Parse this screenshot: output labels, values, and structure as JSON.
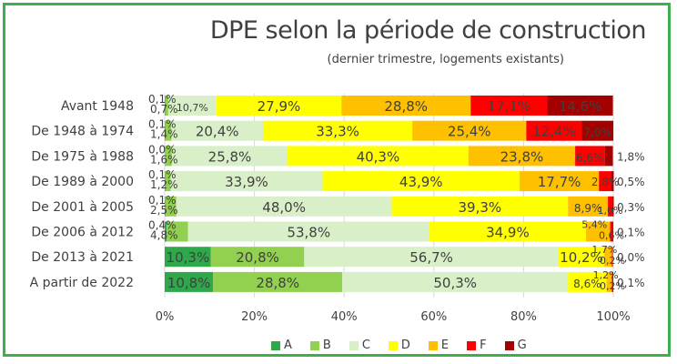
{
  "chart_data": {
    "type": "bar",
    "orientation": "horizontal",
    "stacked": "percent",
    "title": "DPE selon la période de construction",
    "subtitle": "(dernier trimestre, logements existants)",
    "xlabel": "",
    "ylabel": "",
    "xlim": [
      0,
      100
    ],
    "x_ticks": [
      "0%",
      "20%",
      "40%",
      "60%",
      "80%",
      "100%"
    ],
    "grid": true,
    "legend_position": "bottom",
    "categories": [
      "Avant 1948",
      "De 1948 à 1974",
      "De 1975 à 1988",
      "De 1989 à 2000",
      "De 2001 à 2005",
      "De 2006 à 2012",
      "De 2013 à 2021",
      "A partir de 2022"
    ],
    "series": [
      {
        "name": "A",
        "color": "#2ea84a",
        "values": [
          0.1,
          0.1,
          0.0,
          0.1,
          0.1,
          0.4,
          10.3,
          10.8
        ],
        "labels": [
          "0,1%",
          "0,1%",
          "0,0%",
          "0,1%",
          "0,1%",
          "0,4%",
          "10,3%",
          "10,8%"
        ]
      },
      {
        "name": "B",
        "color": "#92d050",
        "values": [
          0.7,
          1.4,
          1.6,
          1.2,
          2.5,
          4.8,
          20.8,
          28.8
        ],
        "labels": [
          "0,7%",
          "1,4%",
          "1,6%",
          "1,2%",
          "2,5%",
          "4,8%",
          "20,8%",
          "28,8%"
        ]
      },
      {
        "name": "C",
        "color": "#d9efc8",
        "values": [
          10.7,
          20.4,
          25.8,
          33.9,
          48.0,
          53.8,
          56.7,
          50.3
        ],
        "labels": [
          "10,7%",
          "20,4%",
          "25,8%",
          "33,9%",
          "48,0%",
          "53,8%",
          "56,7%",
          "50,3%"
        ]
      },
      {
        "name": "D",
        "color": "#ffff00",
        "values": [
          27.9,
          33.3,
          40.3,
          43.9,
          39.3,
          34.9,
          10.2,
          8.6
        ],
        "labels": [
          "27,9%",
          "33,3%",
          "40,3%",
          "43,9%",
          "39,3%",
          "34,9%",
          "10,2%",
          "8,6%"
        ]
      },
      {
        "name": "E",
        "color": "#ffc000",
        "values": [
          28.8,
          25.4,
          23.8,
          17.7,
          8.9,
          5.4,
          1.7,
          1.2
        ],
        "labels": [
          "28,8%",
          "25,4%",
          "23,8%",
          "17,7%",
          "8,9%",
          "5,4%",
          "1,7%",
          "1,2%"
        ]
      },
      {
        "name": "F",
        "color": "#ff0000",
        "values": [
          17.1,
          12.4,
          6.6,
          2.8,
          1.0,
          0.6,
          0.2,
          0.2
        ],
        "labels": [
          "17,1%",
          "12,4%",
          "6,6%",
          "2,8%",
          "1,0%",
          "0,6%",
          "0,2%",
          "0,2%"
        ]
      },
      {
        "name": "G",
        "color": "#a50000",
        "values": [
          14.6,
          7.0,
          1.8,
          0.5,
          0.3,
          0.1,
          0.0,
          0.1
        ],
        "labels": [
          "14,6%",
          "7,0%",
          "1,8%",
          "0,5%",
          "0,3%",
          "0,1%",
          "0,0%",
          "0,1%"
        ]
      }
    ]
  }
}
